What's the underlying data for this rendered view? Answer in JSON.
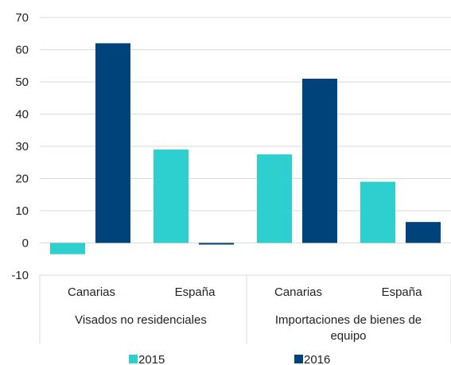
{
  "chart_data": {
    "type": "bar",
    "groups": [
      {
        "label": "Visados no residenciales",
        "categories": [
          "Canarias",
          "España"
        ]
      },
      {
        "label": "Importaciones de bienes de equipo",
        "categories": [
          "Canarias",
          "España"
        ]
      }
    ],
    "series": [
      {
        "name": "2015",
        "color": "#2ECFCF",
        "values": [
          -3.5,
          29,
          27.5,
          19
        ]
      },
      {
        "name": "2016",
        "color": "#00427A",
        "values": [
          62,
          -0.5,
          51,
          6.5
        ]
      }
    ],
    "yticks": [
      -10,
      0,
      10,
      20,
      30,
      40,
      50,
      60,
      70
    ],
    "ylim": [
      -10,
      70
    ],
    "grid": true,
    "legend_position": "bottom"
  }
}
